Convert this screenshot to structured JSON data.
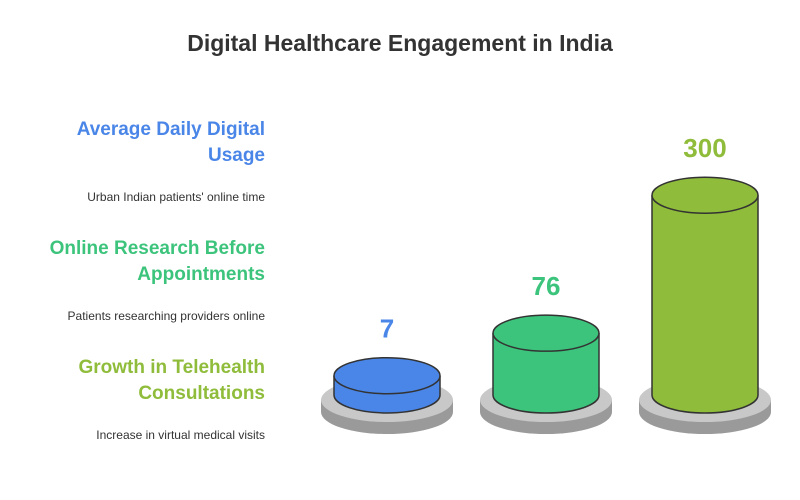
{
  "chart_data": {
    "type": "bar",
    "title": "Digital Healthcare Engagement in India",
    "categories": [
      "Average Daily Digital Usage",
      "Online Research Before Appointments",
      "Growth in Telehealth Consultations"
    ],
    "descriptions": [
      "Urban Indian patients' online time",
      "Patients researching providers online",
      "Increase in virtual medical visits"
    ],
    "values": [
      7,
      76,
      300
    ],
    "colors": [
      "#4a86e8",
      "#3cc47c",
      "#8fbc3a"
    ]
  }
}
